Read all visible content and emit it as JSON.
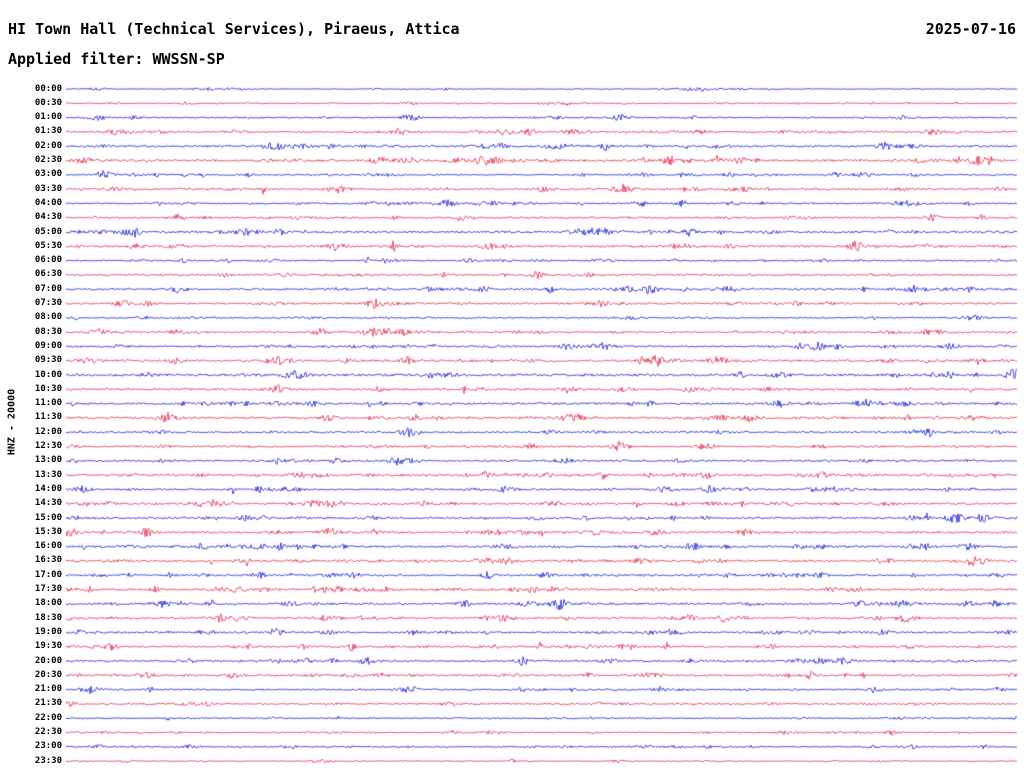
{
  "header": {
    "title": "HI Town Hall (Technical Services), Piraeus, Attica",
    "date": "2025-07-16",
    "filter": "Applied filter: WWSSN-SP"
  },
  "chart_data": {
    "type": "line",
    "subtype": "helicorder-seismogram",
    "title": "HI Town Hall (Technical Services), Piraeus, Attica",
    "date": "2025-07-16",
    "filter": "WWSSN-SP",
    "channel": "HNZ - 20000",
    "minutes_per_row": 30,
    "first_row": "00:00",
    "last_row": "23:30",
    "legend": "alternating blue/red traces, one 30-minute row each",
    "trace_colors": {
      "blue": "#0000cd",
      "red": "#dc143c"
    },
    "rows": [
      {
        "time": "00:00",
        "color": "blue",
        "activity": 0.35
      },
      {
        "time": "00:30",
        "color": "red",
        "activity": 0.4
      },
      {
        "time": "01:00",
        "color": "blue",
        "activity": 0.55
      },
      {
        "time": "01:30",
        "color": "red",
        "activity": 0.75
      },
      {
        "time": "02:00",
        "color": "blue",
        "activity": 0.8
      },
      {
        "time": "02:30",
        "color": "red",
        "activity": 0.85
      },
      {
        "time": "03:00",
        "color": "blue",
        "activity": 0.55
      },
      {
        "time": "03:30",
        "color": "red",
        "activity": 0.7
      },
      {
        "time": "04:00",
        "color": "blue",
        "activity": 0.6
      },
      {
        "time": "04:30",
        "color": "red",
        "activity": 0.65
      },
      {
        "time": "05:00",
        "color": "blue",
        "activity": 0.9
      },
      {
        "time": "05:30",
        "color": "red",
        "activity": 0.85
      },
      {
        "time": "06:00",
        "color": "blue",
        "activity": 0.6
      },
      {
        "time": "06:30",
        "color": "red",
        "activity": 0.7
      },
      {
        "time": "07:00",
        "color": "blue",
        "activity": 0.85
      },
      {
        "time": "07:30",
        "color": "red",
        "activity": 0.75
      },
      {
        "time": "08:00",
        "color": "blue",
        "activity": 0.6
      },
      {
        "time": "08:30",
        "color": "red",
        "activity": 0.65
      },
      {
        "time": "09:00",
        "color": "blue",
        "activity": 0.7
      },
      {
        "time": "09:30",
        "color": "red",
        "activity": 0.9
      },
      {
        "time": "10:00",
        "color": "blue",
        "activity": 0.95
      },
      {
        "time": "10:30",
        "color": "red",
        "activity": 0.8
      },
      {
        "time": "11:00",
        "color": "blue",
        "activity": 0.75
      },
      {
        "time": "11:30",
        "color": "red",
        "activity": 0.8
      },
      {
        "time": "12:00",
        "color": "blue",
        "activity": 0.7
      },
      {
        "time": "12:30",
        "color": "red",
        "activity": 0.75
      },
      {
        "time": "13:00",
        "color": "blue",
        "activity": 0.7
      },
      {
        "time": "13:30",
        "color": "red",
        "activity": 0.75
      },
      {
        "time": "14:00",
        "color": "blue",
        "activity": 0.7
      },
      {
        "time": "14:30",
        "color": "red",
        "activity": 0.8
      },
      {
        "time": "15:00",
        "color": "blue",
        "activity": 0.75
      },
      {
        "time": "15:30",
        "color": "red",
        "activity": 0.85
      },
      {
        "time": "16:00",
        "color": "blue",
        "activity": 0.8
      },
      {
        "time": "16:30",
        "color": "red",
        "activity": 0.85
      },
      {
        "time": "17:00",
        "color": "blue",
        "activity": 0.7
      },
      {
        "time": "17:30",
        "color": "red",
        "activity": 0.75
      },
      {
        "time": "18:00",
        "color": "blue",
        "activity": 0.8
      },
      {
        "time": "18:30",
        "color": "red",
        "activity": 0.8
      },
      {
        "time": "19:00",
        "color": "blue",
        "activity": 0.75
      },
      {
        "time": "19:30",
        "color": "red",
        "activity": 0.7
      },
      {
        "time": "20:00",
        "color": "blue",
        "activity": 0.7
      },
      {
        "time": "20:30",
        "color": "red",
        "activity": 0.75
      },
      {
        "time": "21:00",
        "color": "blue",
        "activity": 0.7
      },
      {
        "time": "21:30",
        "color": "red",
        "activity": 0.6
      },
      {
        "time": "22:00",
        "color": "blue",
        "activity": 0.45
      },
      {
        "time": "22:30",
        "color": "red",
        "activity": 0.4
      },
      {
        "time": "23:00",
        "color": "blue",
        "activity": 0.5
      },
      {
        "time": "23:30",
        "color": "red",
        "activity": 0.4
      }
    ]
  }
}
